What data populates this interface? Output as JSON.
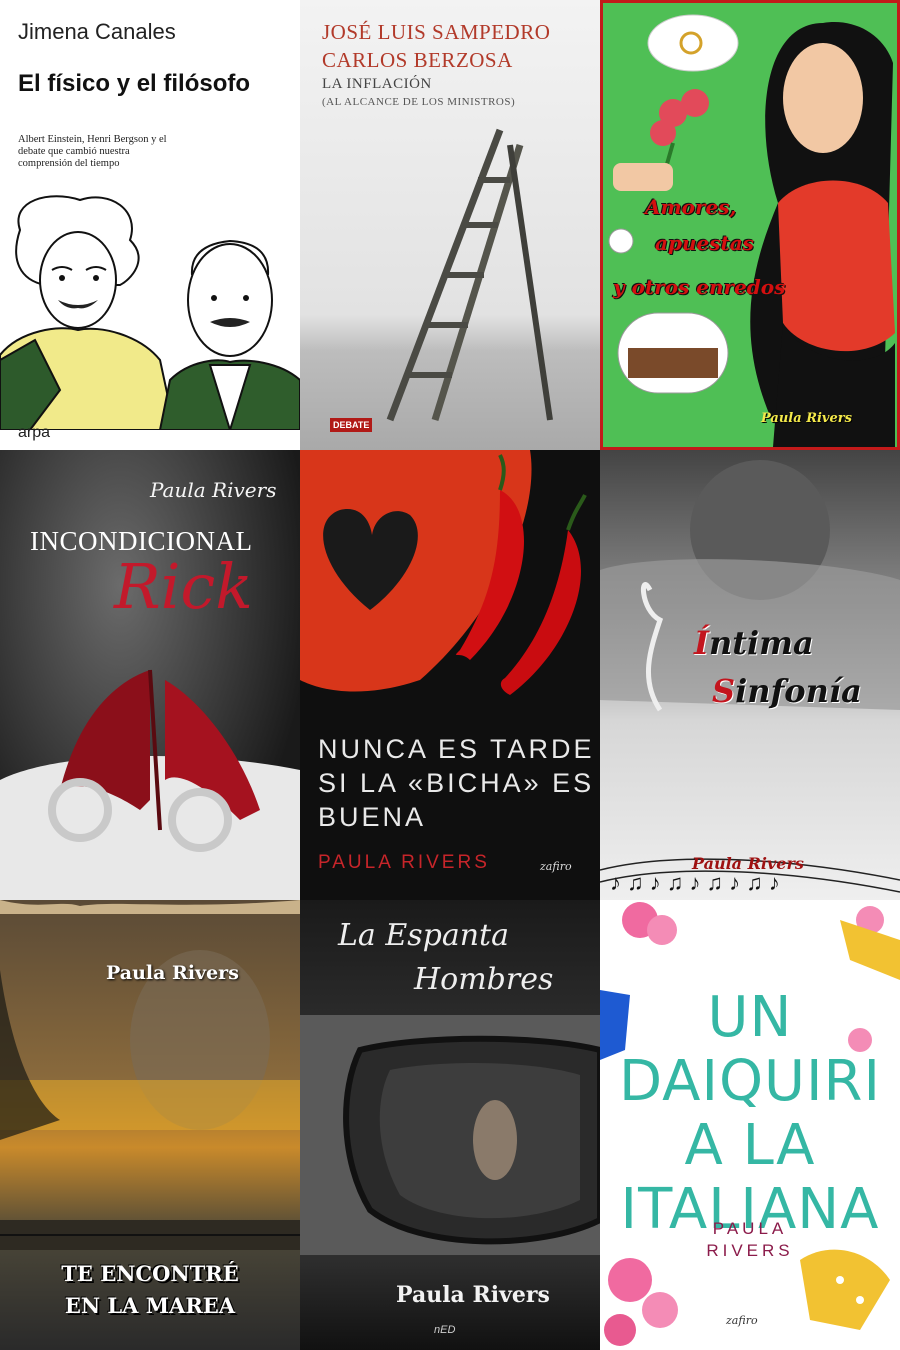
{
  "covers": [
    {
      "author": "Jimena Canales",
      "title": "El físico y el filósofo",
      "subtitle": "Albert Einstein, Henri Bergson y el debate que cambió nuestra comprensión del tiempo",
      "publisher": "arpa"
    },
    {
      "authors": [
        "José Luis Sampedro",
        "Carlos Berzosa"
      ],
      "title": "La inflación",
      "subtitle": "(al alcance de los ministros)",
      "publisher": "DEBATE"
    },
    {
      "title_lines": [
        "Amores,",
        "apuestas",
        "y otros enredos"
      ],
      "author": "Paula Rivers"
    },
    {
      "author": "Paula Rivers",
      "title_line1": "INCONDICIONAL",
      "title_line2": "Rick"
    },
    {
      "title": "NUNCA ES TARDE SI LA «BICHA» ES BUENA",
      "author": "PAULA RIVERS",
      "publisher": "zafiro"
    },
    {
      "title_line1_cap": "Í",
      "title_line1_rest": "ntima",
      "title_line2_cap": "S",
      "title_line2_rest": "infonía",
      "author": "Paula Rivers"
    },
    {
      "author": "Paula Rivers",
      "title_line1": "TE ENCONTRÉ",
      "title_line2": "EN LA MAREA"
    },
    {
      "title_line1": "La Espanta",
      "title_line2": "Hombres",
      "author": "Paula Rivers",
      "publisher": "nED"
    },
    {
      "title_lines": [
        "UN",
        "DAIQUIRI",
        "A LA",
        "ITALIANA"
      ],
      "author_lines": [
        "PAULA",
        "RIVERS"
      ],
      "publisher": "zafiro"
    }
  ],
  "colors": {
    "sampedro_red": "#b23a2a",
    "rick_red": "#c3192b",
    "bicha_red": "#c7252a",
    "daiquiri_teal": "#35b7a4",
    "daiquiri_author": "#8b1b4a",
    "amores_green": "#4fbf55"
  }
}
